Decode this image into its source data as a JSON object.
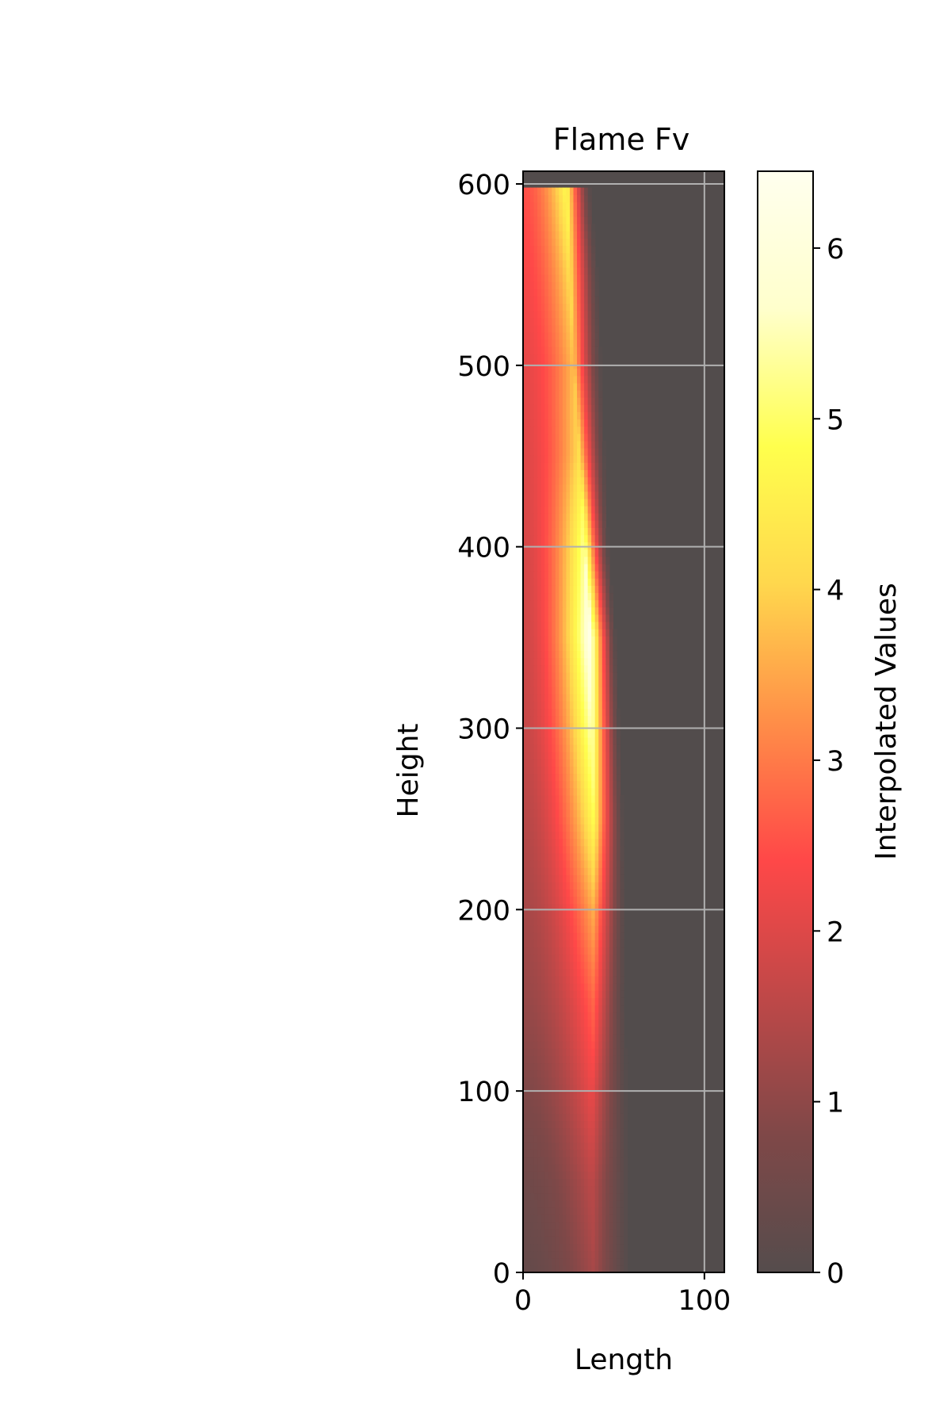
{
  "chart_data": {
    "type": "heatmap",
    "title": "Flame Fv",
    "xlabel": "Length",
    "ylabel": "Height",
    "xlim": [
      0,
      111
    ],
    "ylim": [
      0,
      607
    ],
    "x_ticks": [
      "0",
      "100"
    ],
    "y_ticks": [
      "0",
      "100",
      "200",
      "300",
      "400",
      "500",
      "600"
    ],
    "grid": true,
    "data_extent": {
      "x": [
        0,
        111
      ],
      "y": [
        0,
        598
      ]
    },
    "background_value": 0,
    "profile": {
      "height": [
        0,
        50,
        100,
        150,
        200,
        250,
        300,
        350,
        400,
        450,
        500,
        550,
        598
      ],
      "peak_length": [
        39,
        38,
        38,
        39,
        39,
        39,
        38,
        37,
        34,
        31,
        28,
        26,
        24
      ],
      "peak_value": [
        1.3,
        1.6,
        2.2,
        2.8,
        3.6,
        4.8,
        5.6,
        6.3,
        5.4,
        4.2,
        3.8,
        4.2,
        4.8
      ],
      "edge_value": [
        0.3,
        0.5,
        0.8,
        1.1,
        1.3,
        1.5,
        1.7,
        1.8,
        1.9,
        2.0,
        2.1,
        2.3,
        2.5
      ],
      "flame_extent": [
        58,
        58,
        57,
        56,
        56,
        55,
        53,
        51,
        47,
        45,
        43,
        41,
        37
      ]
    },
    "colorbar": {
      "label": "Interpolated Values",
      "vmin": 0,
      "vmax": 6.45,
      "colormap": "hot_r",
      "ticks": [
        "0",
        "1",
        "2",
        "3",
        "4",
        "5",
        "6"
      ]
    },
    "colors": {
      "background": "#524c4c",
      "grid": "#b0b0b0",
      "colormap_stops": [
        "#554c4c",
        "#7f4848",
        "#bf4848",
        "#ff4848",
        "#ff8e48",
        "#ffd74d",
        "#ffff4d",
        "#ffffcc",
        "#ffffee"
      ]
    }
  }
}
